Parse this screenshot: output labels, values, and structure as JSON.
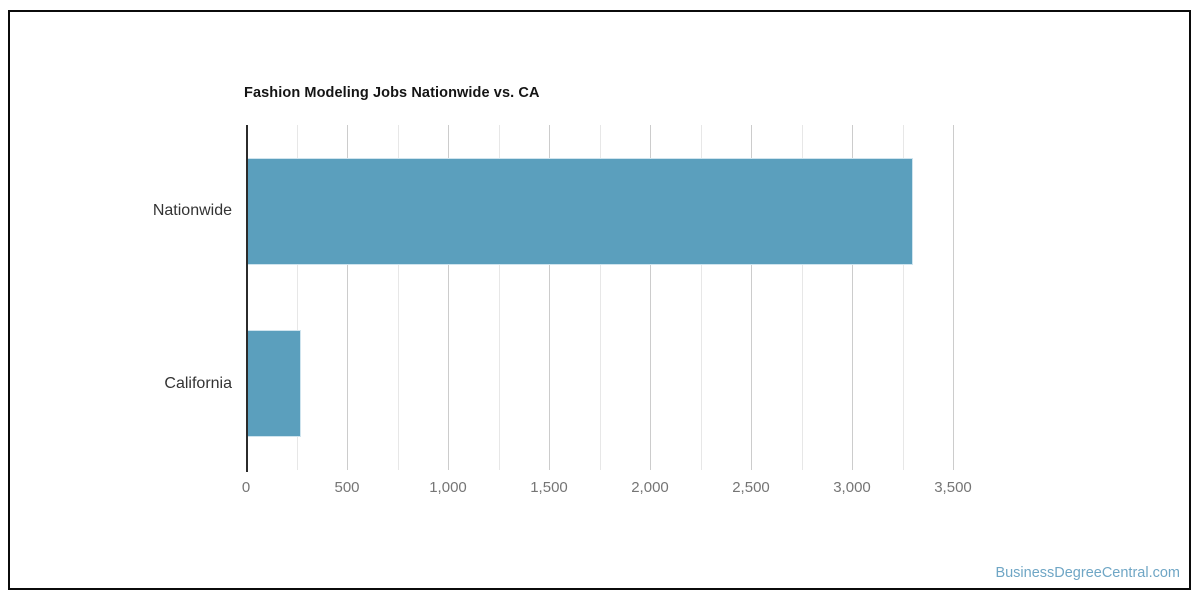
{
  "page": {
    "background": "#ffffff",
    "border_color": "#0b0b0b",
    "watermark": {
      "label": "BusinessDegreeCentral.com",
      "color": "#6FA6C5"
    }
  },
  "chart_data": {
    "type": "bar",
    "orientation": "horizontal",
    "title": "Fashion Modeling Jobs Nationwide vs. CA",
    "categories": [
      "Nationwide",
      "California"
    ],
    "values": [
      3300,
      270
    ],
    "xlabel": "",
    "ylabel": "",
    "xlim": [
      0,
      3500
    ],
    "x_ticks": [
      0,
      500,
      1000,
      1500,
      2000,
      2500,
      3000,
      3500
    ],
    "x_tick_labels": [
      "0",
      "500",
      "1,000",
      "1,500",
      "2,000",
      "2,500",
      "3,000",
      "3,500"
    ],
    "minor_grid_step": 250,
    "grid": true,
    "legend": false,
    "bar_color": "#5B9FBD",
    "bar_border_color": "#CFE4EE",
    "major_grid_color": "#CCCCCC",
    "minor_grid_color": "#E7E7E7",
    "axis_line_color": "#2B2B2B",
    "title_color": "#141414",
    "tick_label_color": "#757575",
    "category_label_color": "#333333"
  }
}
